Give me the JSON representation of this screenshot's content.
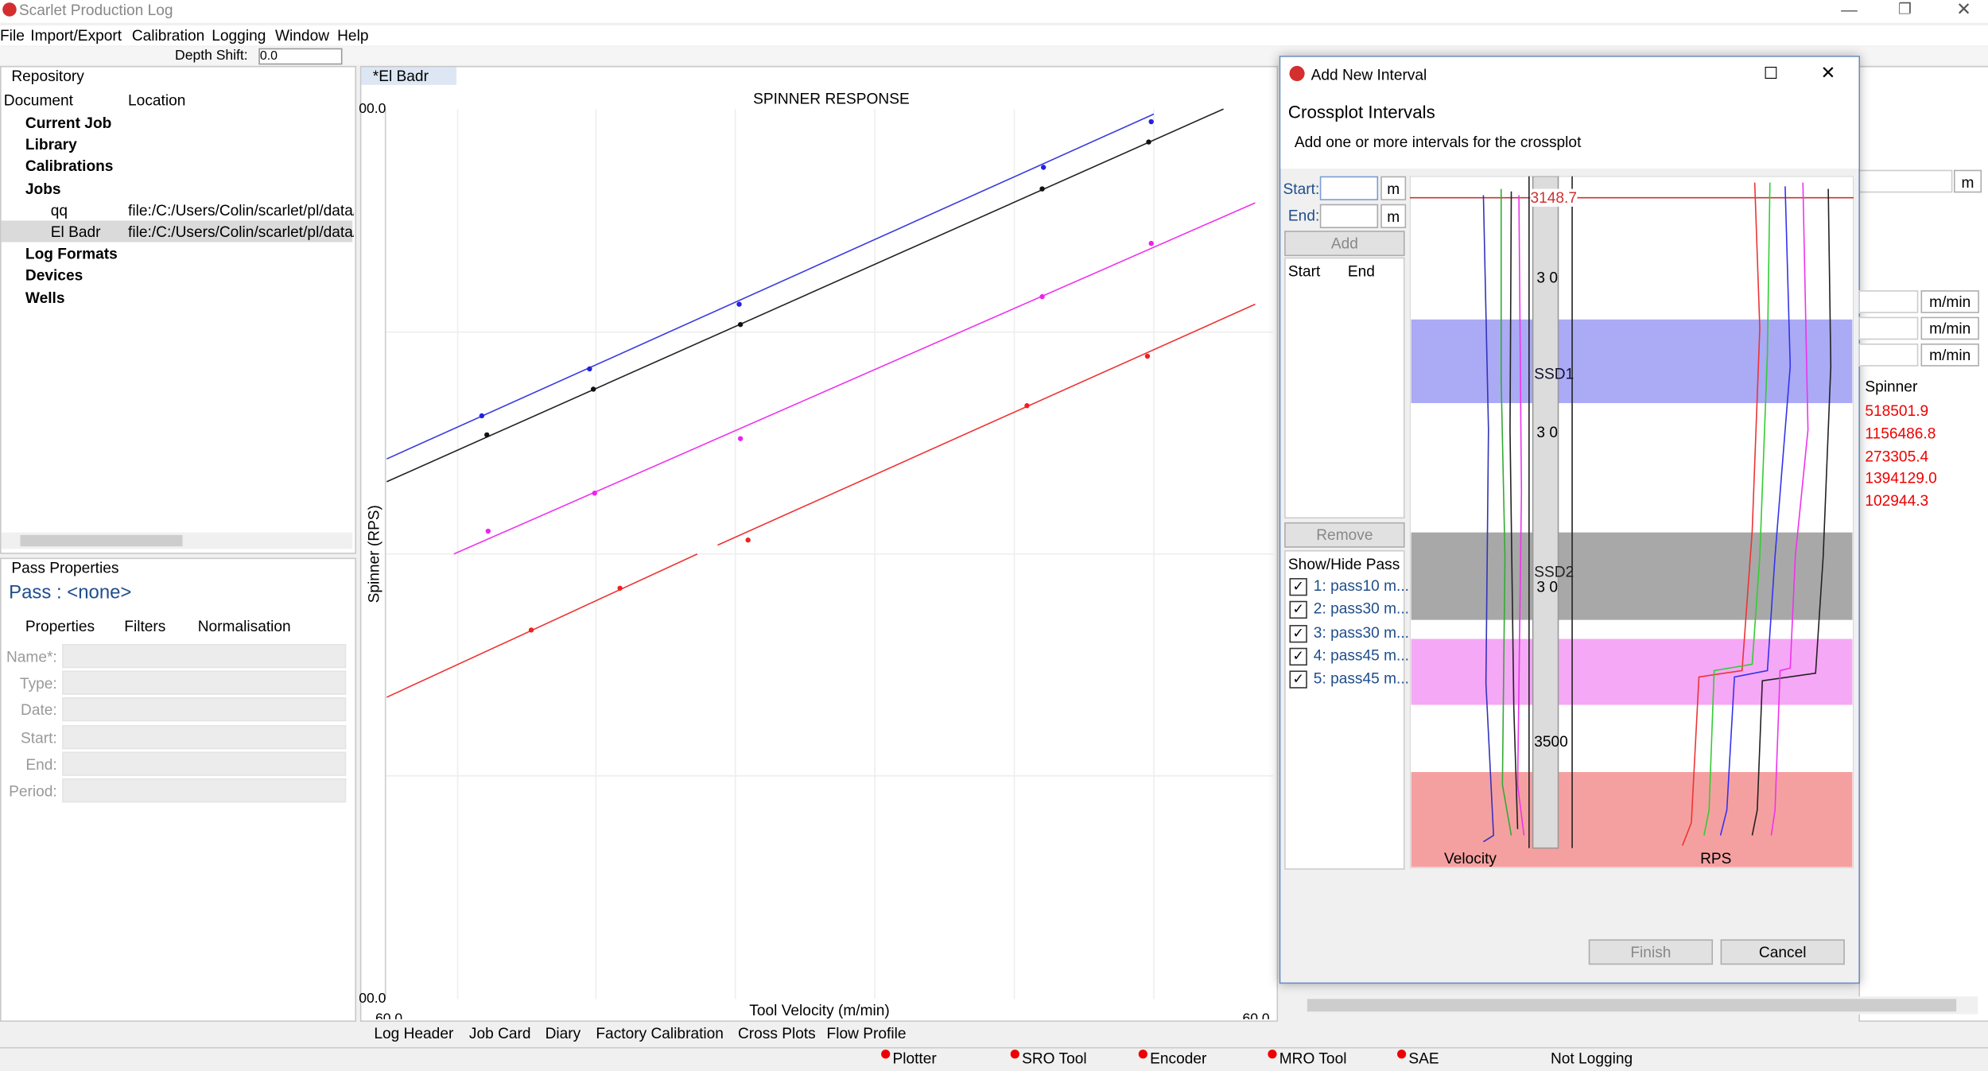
{
  "window": {
    "title": "Scarlet Production Log"
  },
  "menu": [
    "File",
    "Import/Export",
    "Calibration",
    "Logging",
    "Window",
    "Help"
  ],
  "toolbar": {
    "depth_shift_label": "Depth Shift:",
    "depth_shift_value": "0.0"
  },
  "repository": {
    "title": "Repository",
    "columns": [
      "Document",
      "Location"
    ],
    "items": [
      {
        "label": "Current Job",
        "location": null
      },
      {
        "label": "Library",
        "location": null
      },
      {
        "label": "Calibrations",
        "location": null
      },
      {
        "label": "Jobs",
        "location": null
      },
      {
        "label": "qq",
        "location": "file:/C:/Users/Colin/scarlet/pl/data/"
      },
      {
        "label": "El Badr",
        "location": "file:/C:/Users/Colin/scarlet/pl/data/"
      },
      {
        "label": "Log Formats",
        "location": null
      },
      {
        "label": "Devices",
        "location": null
      },
      {
        "label": "Wells",
        "location": null
      }
    ]
  },
  "pass_properties": {
    "title": "Pass Properties",
    "pass": "Pass : <none>",
    "tabs": [
      "Properties",
      "Filters",
      "Normalisation"
    ],
    "fields": [
      "Name*:",
      "Type:",
      "Date:",
      "Start:",
      "End:",
      "Period:"
    ]
  },
  "editor": {
    "tab": "*El Badr",
    "plot_title": "SPINNER RESPONSE",
    "y_label": "Spinner (RPS)",
    "x_label": "Tool Velocity (m/min)",
    "y_top": "00.0",
    "y_bottom": "00.0",
    "x_left": "60.0",
    "x_right": "60.0",
    "bottom_tabs": [
      "Log Header",
      "Job Card",
      "Diary",
      "Factory Calibration",
      "Cross Plots",
      "Flow Profile"
    ]
  },
  "dialog": {
    "title": "Add New Interval",
    "heading": "Crossplot Intervals",
    "description": "Add one or more intervals for the crossplot",
    "start_label": "Start:",
    "end_label": "End:",
    "unit": "m",
    "add": "Add",
    "columns": [
      "Start",
      "End"
    ],
    "remove": "Remove",
    "show_hide": "Show/Hide Pass",
    "passes": [
      "1: pass10 m...",
      "2: pass30 m...",
      "3: pass30 m...",
      "4: pass45 m...",
      "5: pass45 m..."
    ],
    "track": {
      "depth_top": "3148.7",
      "depth_labels": [
        "3 0",
        "3 0",
        "3 0",
        "3500"
      ],
      "zones": [
        "SSD1",
        "SSD2"
      ],
      "left_track": "Velocity",
      "right_track": "RPS"
    },
    "finish": "Finish",
    "cancel": "Cancel"
  },
  "right_panel": {
    "units": [
      "m",
      "m/min",
      "m/min",
      "m/min"
    ],
    "column": "Spinner",
    "values": [
      "518501.9",
      "1156486.8",
      "273305.4",
      "1394129.0",
      "102944.3"
    ]
  },
  "status": [
    "Plotter",
    "SRO Tool",
    "Encoder",
    "MRO Tool",
    "SAE",
    "Not Logging"
  ]
}
